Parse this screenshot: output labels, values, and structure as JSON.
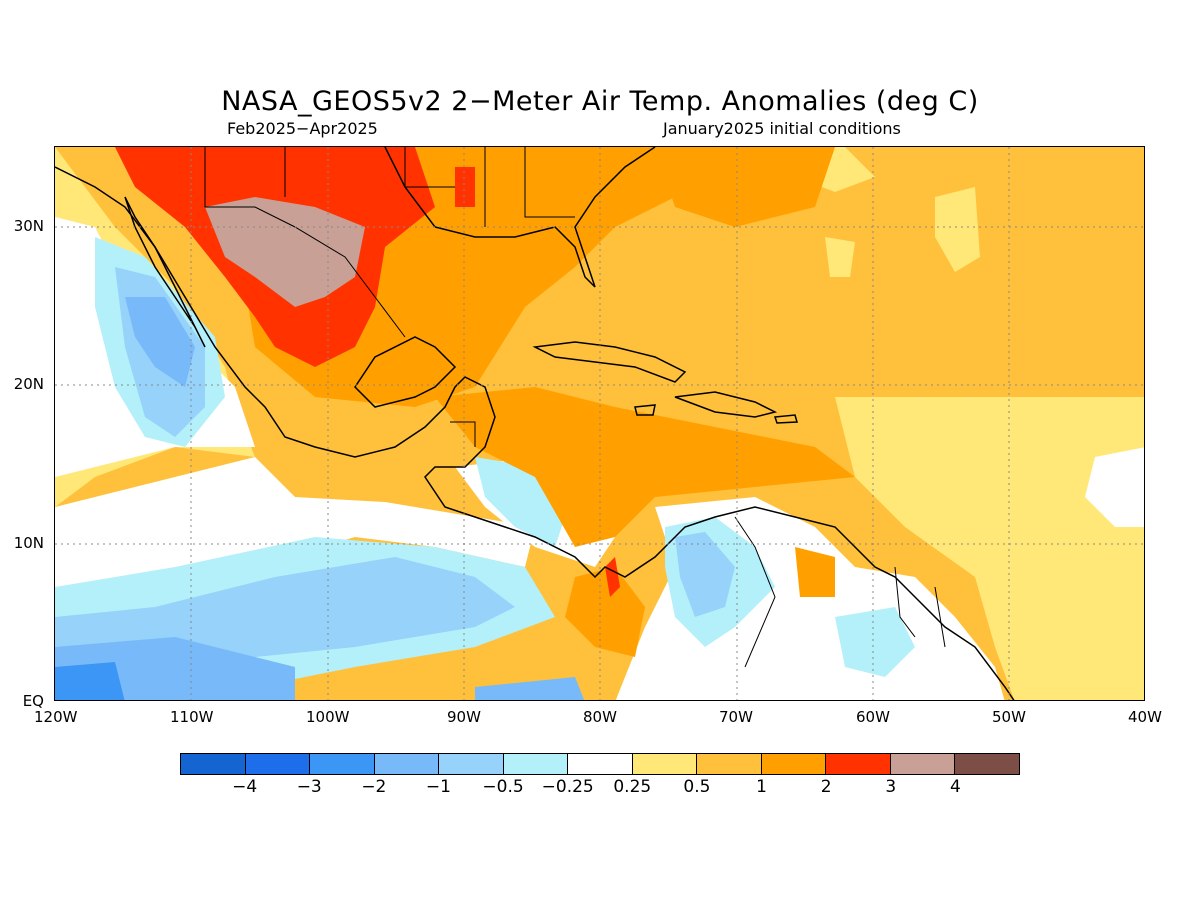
{
  "title": "NASA_GEOS5v2 2−Meter Air Temp. Anomalies (deg C)",
  "subtitle_left": "Feb2025−Apr2025",
  "subtitle_right": "January2025 initial conditions",
  "map": {
    "lon_labels": [
      "120W",
      "110W",
      "100W",
      "90W",
      "80W",
      "70W",
      "60W",
      "50W",
      "40W"
    ],
    "lat_labels": [
      "30N",
      "20N",
      "10N",
      "EQ"
    ]
  },
  "colorbar": {
    "colors": [
      "#1464d2",
      "#1e6eeb",
      "#3c96f5",
      "#78b9fa",
      "#96d2fa",
      "#b4f0fa",
      "#ffffff",
      "#ffe878",
      "#ffc03c",
      "#ffa000",
      "#ff3200",
      "#c8a096",
      "#7d4e46"
    ],
    "labels": [
      "−4",
      "−3",
      "−2",
      "−1",
      "−0.5",
      "−0.25",
      "0.25",
      "0.5",
      "1",
      "2",
      "3",
      "4"
    ]
  }
}
